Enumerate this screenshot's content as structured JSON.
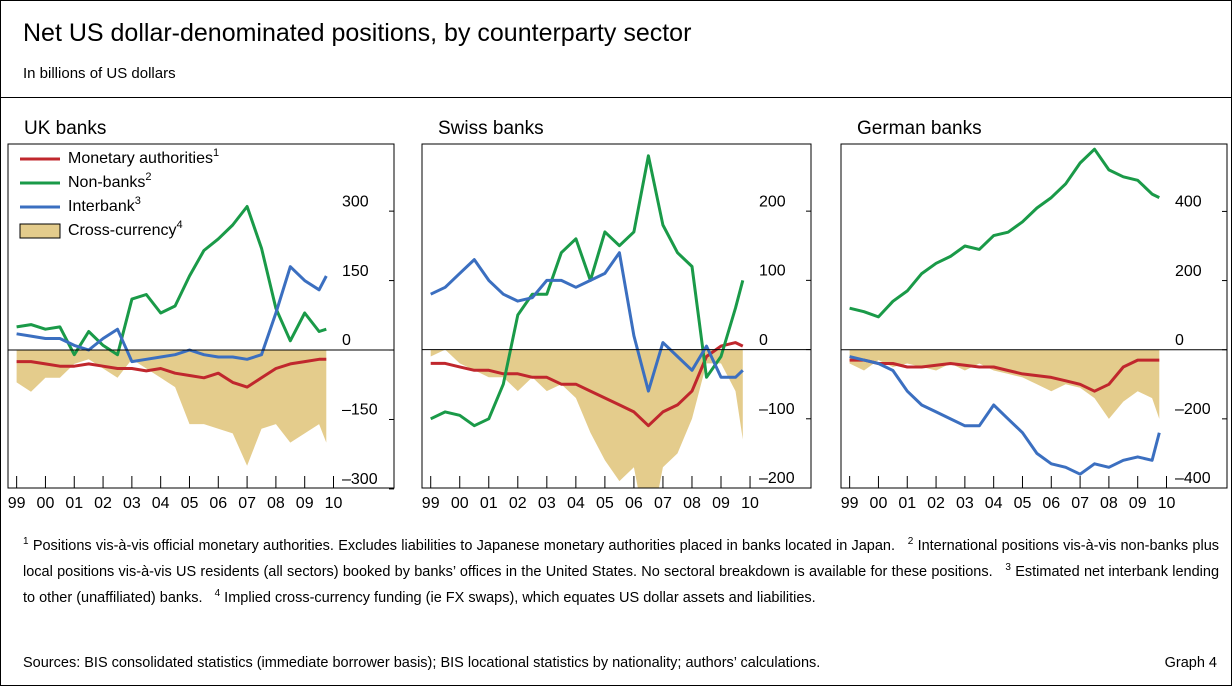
{
  "title": "Net US dollar-denominated positions, by counterparty sector",
  "subtitle": "In billions of US dollars",
  "footnotes": [
    {
      "mark": "1",
      "text": "Positions vis-à-vis official monetary authorities. Excludes liabilities to Japanese monetary authorities placed in banks located in Japan."
    },
    {
      "mark": "2",
      "text": "International positions vis-à-vis non-banks plus local positions vis-à-vis US residents (all sectors) booked by banks’ offices in the United States. No sectoral breakdown is available for these positions."
    },
    {
      "mark": "3",
      "text": "Estimated net interbank lending to other (unaffiliated) banks."
    },
    {
      "mark": "4",
      "text": "Implied cross-currency funding (ie FX swaps), which equates US dollar assets and liabilities."
    }
  ],
  "sources": "Sources: BIS consolidated statistics (immediate borrower basis); BIS locational statistics by nationality; authors’ calculations.",
  "graph_label": "Graph 4",
  "chart_data": [
    {
      "type": "line",
      "title": "UK banks",
      "legend": "upper left",
      "x": [
        1999,
        1999.5,
        2000,
        2000.5,
        2001,
        2001.5,
        2002,
        2002.5,
        2003,
        2003.5,
        2004,
        2004.5,
        2005,
        2005.5,
        2006,
        2006.5,
        2007,
        2007.5,
        2008,
        2008.5,
        2009,
        2009.5,
        2009.75
      ],
      "xlim": [
        1998.7,
        2012.1
      ],
      "xticks": [
        {
          "value": 1999,
          "label": "99"
        },
        {
          "value": 2000,
          "label": "00"
        },
        {
          "value": 2001,
          "label": "01"
        },
        {
          "value": 2002,
          "label": "02"
        },
        {
          "value": 2003,
          "label": "03"
        },
        {
          "value": 2004,
          "label": "04"
        },
        {
          "value": 2005,
          "label": "05"
        },
        {
          "value": 2006,
          "label": "06"
        },
        {
          "value": 2007,
          "label": "07"
        },
        {
          "value": 2008,
          "label": "08"
        },
        {
          "value": 2009,
          "label": "09"
        },
        {
          "value": 2010,
          "label": "10"
        }
      ],
      "ylim": [
        -298,
        445
      ],
      "yticks": [
        {
          "value": -300,
          "label": "–300"
        },
        {
          "value": -150,
          "label": "–150"
        },
        0,
        150,
        300
      ],
      "series": [
        {
          "name": "Monetary authorities",
          "note": "1",
          "kind": "line",
          "color": "#c0272d",
          "values": [
            -25,
            -25,
            -30,
            -35,
            -35,
            -30,
            -35,
            -40,
            -40,
            -45,
            -40,
            -50,
            -55,
            -60,
            -50,
            -70,
            -80,
            -60,
            -40,
            -30,
            -25,
            -20,
            -20
          ]
        },
        {
          "name": "Non-banks",
          "note": "2",
          "kind": "line",
          "color": "#1a9a48",
          "values": [
            50,
            55,
            45,
            50,
            -10,
            40,
            10,
            -10,
            110,
            120,
            80,
            95,
            160,
            215,
            240,
            270,
            310,
            220,
            90,
            20,
            80,
            40,
            45
          ]
        },
        {
          "name": "Interbank",
          "note": "3",
          "kind": "line",
          "color": "#3b6fc0",
          "values": [
            35,
            30,
            25,
            25,
            10,
            0,
            25,
            45,
            -25,
            -20,
            -15,
            -10,
            0,
            -10,
            -15,
            -15,
            -20,
            -10,
            80,
            180,
            150,
            130,
            160
          ]
        },
        {
          "name": "Cross-currency",
          "note": "4",
          "kind": "area",
          "color": "#e4cc8c",
          "values": [
            -70,
            -90,
            -60,
            -60,
            -30,
            -20,
            -40,
            -60,
            -20,
            -40,
            -60,
            -80,
            -160,
            -160,
            -170,
            -180,
            -250,
            -170,
            -160,
            -200,
            -180,
            -160,
            -200
          ]
        }
      ]
    },
    {
      "type": "line",
      "title": "Swiss banks",
      "x": [
        1999,
        1999.5,
        2000,
        2000.5,
        2001,
        2001.5,
        2002,
        2002.5,
        2003,
        2003.5,
        2004,
        2004.5,
        2005,
        2005.5,
        2006,
        2006.5,
        2007,
        2007.5,
        2008,
        2008.5,
        2009,
        2009.5,
        2009.75
      ],
      "xlim": [
        1998.7,
        2012.1
      ],
      "xticks": [
        {
          "value": 1999,
          "label": "99"
        },
        {
          "value": 2000,
          "label": "00"
        },
        {
          "value": 2001,
          "label": "01"
        },
        {
          "value": 2002,
          "label": "02"
        },
        {
          "value": 2003,
          "label": "03"
        },
        {
          "value": 2004,
          "label": "04"
        },
        {
          "value": 2005,
          "label": "05"
        },
        {
          "value": 2006,
          "label": "06"
        },
        {
          "value": 2007,
          "label": "07"
        },
        {
          "value": 2008,
          "label": "08"
        },
        {
          "value": 2009,
          "label": "09"
        },
        {
          "value": 2010,
          "label": "10"
        }
      ],
      "ylim": [
        -200,
        297
      ],
      "yticks": [
        {
          "value": -200,
          "label": "–200"
        },
        {
          "value": -100,
          "label": "–100"
        },
        0,
        100,
        200
      ],
      "series": [
        {
          "name": "Monetary authorities",
          "kind": "line",
          "color": "#c0272d",
          "values": [
            -20,
            -20,
            -25,
            -30,
            -30,
            -35,
            -35,
            -40,
            -40,
            -50,
            -50,
            -60,
            -70,
            -80,
            -90,
            -110,
            -90,
            -80,
            -60,
            -10,
            5,
            10,
            5
          ]
        },
        {
          "name": "Non-banks",
          "kind": "line",
          "color": "#1a9a48",
          "values": [
            -100,
            -90,
            -95,
            -110,
            -100,
            -50,
            50,
            80,
            80,
            140,
            160,
            100,
            170,
            150,
            170,
            280,
            180,
            140,
            120,
            -40,
            -10,
            60,
            100
          ]
        },
        {
          "name": "Interbank",
          "kind": "line",
          "color": "#3b6fc0",
          "values": [
            80,
            90,
            110,
            130,
            100,
            80,
            70,
            75,
            100,
            100,
            90,
            100,
            110,
            140,
            20,
            -60,
            10,
            -10,
            -30,
            5,
            -40,
            -40,
            -30
          ]
        },
        {
          "name": "Cross-currency",
          "kind": "area",
          "color": "#e4cc8c",
          "values": [
            -10,
            0,
            -20,
            -30,
            -40,
            -40,
            -60,
            -40,
            -60,
            -50,
            -70,
            -120,
            -160,
            -190,
            -170,
            -280,
            -170,
            -150,
            -100,
            -20,
            -20,
            -60,
            -130
          ]
        }
      ]
    },
    {
      "type": "line",
      "title": "German banks",
      "x": [
        1999,
        1999.5,
        2000,
        2000.5,
        2001,
        2001.5,
        2002,
        2002.5,
        2003,
        2003.5,
        2004,
        2004.5,
        2005,
        2005.5,
        2006,
        2006.5,
        2007,
        2007.5,
        2008,
        2008.5,
        2009,
        2009.5,
        2009.75
      ],
      "xlim": [
        1998.7,
        2012.1
      ],
      "xticks": [
        {
          "value": 1999,
          "label": "99"
        },
        {
          "value": 2000,
          "label": "00"
        },
        {
          "value": 2001,
          "label": "01"
        },
        {
          "value": 2002,
          "label": "02"
        },
        {
          "value": 2003,
          "label": "03"
        },
        {
          "value": 2004,
          "label": "04"
        },
        {
          "value": 2005,
          "label": "05"
        },
        {
          "value": 2006,
          "label": "06"
        },
        {
          "value": 2007,
          "label": "07"
        },
        {
          "value": 2008,
          "label": "08"
        },
        {
          "value": 2009,
          "label": "09"
        },
        {
          "value": 2010,
          "label": "10"
        }
      ],
      "ylim": [
        -400,
        595
      ],
      "yticks": [
        {
          "value": -400,
          "label": "–400"
        },
        {
          "value": -200,
          "label": "–200"
        },
        0,
        200,
        400
      ],
      "series": [
        {
          "name": "Monetary authorities",
          "kind": "line",
          "color": "#c0272d",
          "values": [
            -30,
            -30,
            -40,
            -40,
            -50,
            -50,
            -45,
            -40,
            -45,
            -50,
            -50,
            -60,
            -70,
            -75,
            -80,
            -90,
            -100,
            -120,
            -100,
            -50,
            -30,
            -30,
            -30
          ]
        },
        {
          "name": "Non-banks",
          "kind": "line",
          "color": "#1a9a48",
          "values": [
            120,
            110,
            95,
            140,
            170,
            220,
            250,
            270,
            300,
            290,
            330,
            340,
            370,
            410,
            440,
            480,
            540,
            580,
            520,
            500,
            490,
            450,
            440
          ]
        },
        {
          "name": "Interbank",
          "kind": "line",
          "color": "#3b6fc0",
          "values": [
            -20,
            -30,
            -40,
            -60,
            -120,
            -160,
            -180,
            -200,
            -220,
            -220,
            -160,
            -200,
            -240,
            -300,
            -330,
            -340,
            -360,
            -330,
            -340,
            -320,
            -310,
            -320,
            -240
          ]
        },
        {
          "name": "Cross-currency",
          "kind": "area",
          "color": "#e4cc8c",
          "values": [
            -40,
            -60,
            -30,
            -50,
            -40,
            -50,
            -60,
            -40,
            -60,
            -40,
            -60,
            -70,
            -80,
            -100,
            -120,
            -100,
            -110,
            -140,
            -200,
            -150,
            -120,
            -140,
            -200
          ]
        }
      ]
    }
  ]
}
